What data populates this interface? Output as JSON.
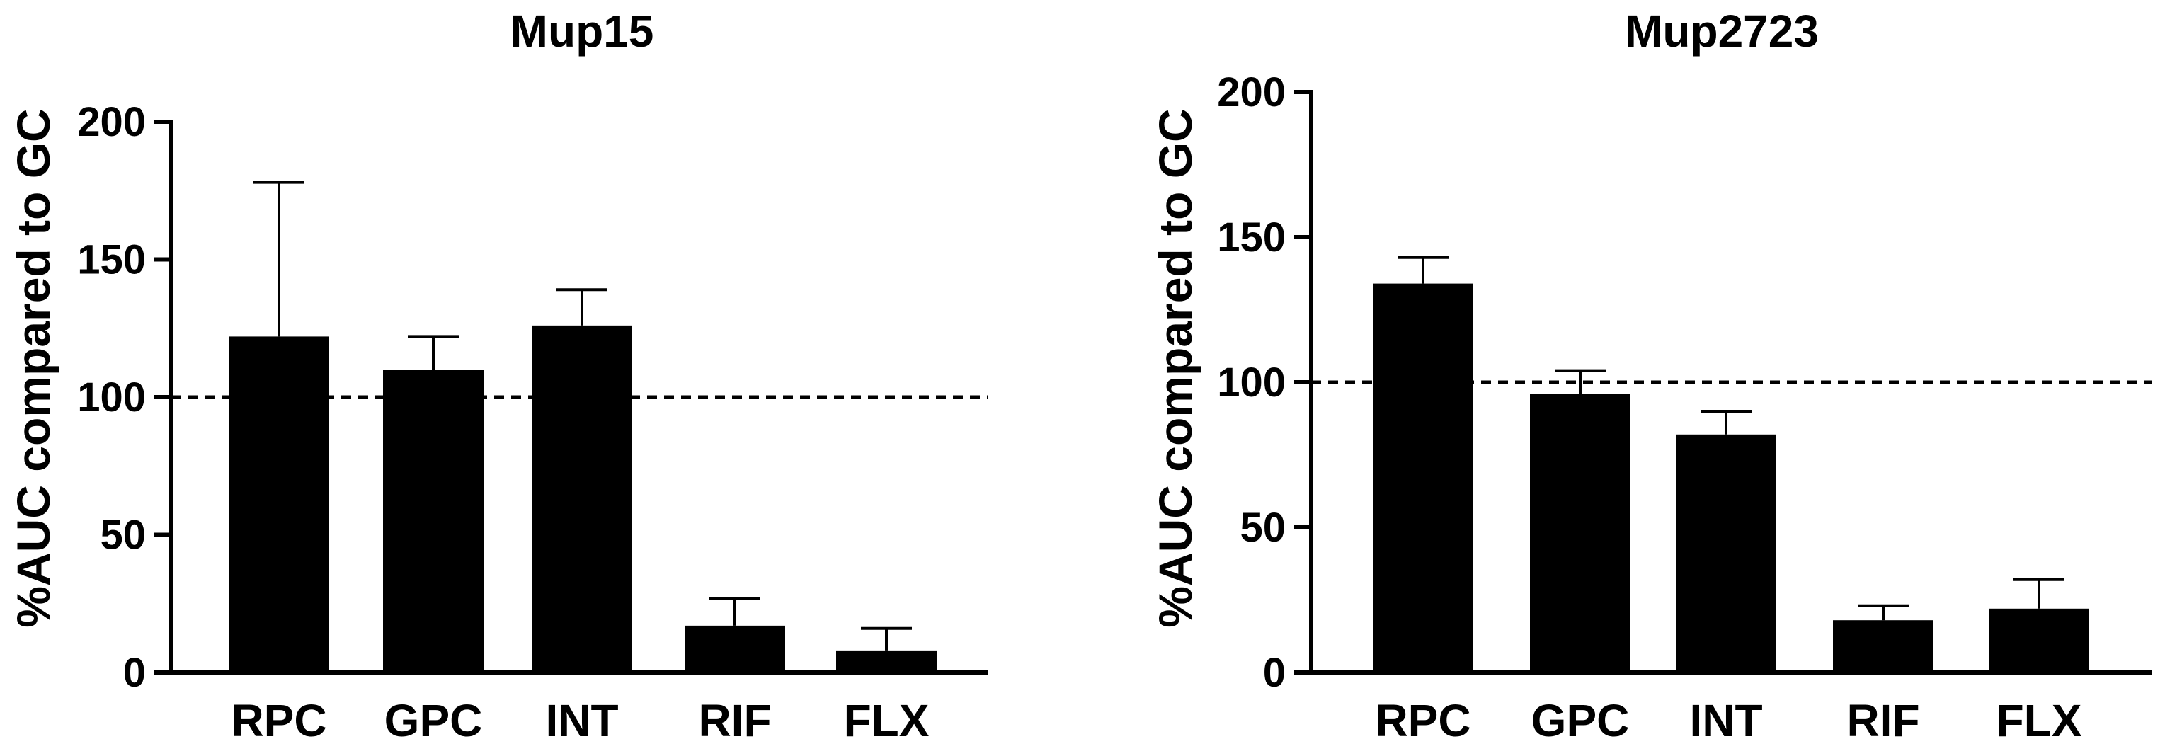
{
  "chart_data": [
    {
      "type": "bar",
      "title": "Mup15",
      "ylabel": "%AUC compared to GC",
      "xlabel": "",
      "categories": [
        "RPC",
        "GPC",
        "INT",
        "RIF",
        "FLX"
      ],
      "values": [
        122,
        110,
        126,
        17,
        8
      ],
      "error_upper": [
        178,
        122,
        139,
        27,
        16
      ],
      "ylim": [
        0,
        200
      ],
      "yticks": [
        "0",
        "50",
        "100",
        "150",
        "200"
      ],
      "reference_line": 100,
      "colors": {
        "bars": "#000000",
        "reference_line": "#000000"
      }
    },
    {
      "type": "bar",
      "title": "Mup2723",
      "ylabel": "%AUC compared to GC",
      "xlabel": "",
      "categories": [
        "RPC",
        "GPC",
        "INT",
        "RIF",
        "FLX"
      ],
      "values": [
        134,
        96,
        82,
        18,
        22
      ],
      "error_upper": [
        143,
        104,
        90,
        23,
        32
      ],
      "ylim": [
        0,
        200
      ],
      "yticks": [
        "0",
        "50",
        "100",
        "150",
        "200"
      ],
      "reference_line": 100,
      "colors": {
        "bars": "#000000",
        "reference_line": "#000000"
      }
    }
  ]
}
